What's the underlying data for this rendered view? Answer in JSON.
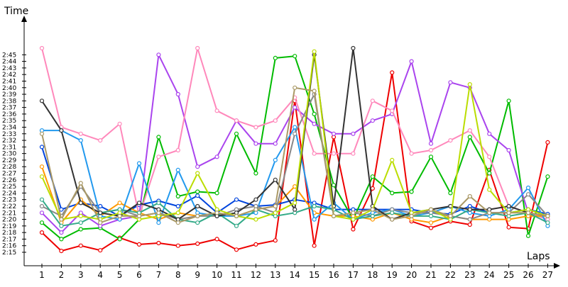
{
  "chart_data": {
    "type": "line",
    "ylabel": "Time",
    "xlabel": "Laps",
    "ylim": [
      134.5,
      166
    ],
    "grid": false,
    "x": [
      1,
      2,
      3,
      4,
      5,
      6,
      7,
      8,
      9,
      10,
      11,
      12,
      13,
      14,
      15,
      16,
      17,
      18,
      19,
      20,
      21,
      22,
      23,
      24,
      25,
      26,
      27
    ],
    "y_ticks": [
      {
        "label": "2:15",
        "value": 135
      },
      {
        "label": "2:16",
        "value": 136
      },
      {
        "label": "2:17",
        "value": 137
      },
      {
        "label": "2:18",
        "value": 138
      },
      {
        "label": "2:19",
        "value": 139
      },
      {
        "label": "2:20",
        "value": 140
      },
      {
        "label": "2:21",
        "value": 141
      },
      {
        "label": "2:22",
        "value": 142
      },
      {
        "label": "2:23",
        "value": 143
      },
      {
        "label": "2:24",
        "value": 144
      },
      {
        "label": "2:25",
        "value": 145
      },
      {
        "label": "2:26",
        "value": 146
      },
      {
        "label": "2:27",
        "value": 147
      },
      {
        "label": "2:28",
        "value": 148
      },
      {
        "label": "2:29",
        "value": 149
      },
      {
        "label": "2:30",
        "value": 150
      },
      {
        "label": "2:31",
        "value": 151
      },
      {
        "label": "2:32",
        "value": 152
      },
      {
        "label": "2:33",
        "value": 153
      },
      {
        "label": "2:34",
        "value": 154
      },
      {
        "label": "2:35",
        "value": 155
      },
      {
        "label": "2:36",
        "value": 156
      },
      {
        "label": "2:37",
        "value": 157
      },
      {
        "label": "2:38",
        "value": 158
      },
      {
        "label": "2:39",
        "value": 159
      },
      {
        "label": "2:40",
        "value": 160
      },
      {
        "label": "2:41",
        "value": 161
      },
      {
        "label": "2:42",
        "value": 162
      },
      {
        "label": "2:43",
        "value": 163
      },
      {
        "label": "2:44",
        "value": 164
      },
      {
        "label": "2:45",
        "value": 165
      }
    ],
    "series": [
      {
        "color": "#ee0000",
        "values": [
          138.0,
          135.2,
          136.0,
          135.3,
          137.2,
          136.2,
          136.4,
          136.0,
          136.3,
          137.0,
          135.4,
          136.2,
          136.8,
          158.0,
          136.0,
          152.5,
          138.5,
          144.7,
          162.3,
          139.7,
          138.7,
          139.7,
          139.2,
          147.5,
          138.8,
          138.6,
          151.7
        ]
      },
      {
        "color": "#0044dd",
        "values": [
          151.0,
          141.5,
          142.5,
          142.0,
          140.5,
          142.2,
          142.8,
          142.0,
          143.6,
          141.0,
          143.0,
          142.0,
          142.2,
          143.0,
          142.5,
          141.5,
          141.5,
          141.5,
          141.5,
          141.5,
          141.0,
          140.8,
          142.0,
          141.0,
          141.0,
          141.5,
          140.8
        ]
      },
      {
        "color": "#00bb00",
        "values": [
          139.5,
          137.0,
          138.5,
          138.7,
          137.0,
          140.0,
          152.5,
          143.5,
          144.2,
          144.0,
          153.0,
          147.0,
          164.5,
          164.8,
          156.0,
          145.2,
          140.0,
          146.5,
          144.0,
          144.2,
          149.5,
          144.0,
          152.5,
          147.0,
          158.0,
          137.5,
          146.5
        ]
      },
      {
        "color": "#aa44ee",
        "values": [
          141.0,
          138.0,
          141.0,
          139.0,
          140.0,
          140.5,
          165.0,
          159.0,
          148.0,
          149.5,
          155.0,
          151.5,
          151.5,
          157.0,
          154.5,
          153.0,
          153.0,
          155.0,
          156.0,
          164.0,
          151.5,
          160.8,
          160.0,
          153.0,
          150.5,
          141.0,
          140.0
        ]
      },
      {
        "color": "#ff88bb",
        "values": [
          166.0,
          154.0,
          153.0,
          152.0,
          154.5,
          140.5,
          149.5,
          150.5,
          166.0,
          156.5,
          155.0,
          154.0,
          155.0,
          158.5,
          150.0,
          150.0,
          150.0,
          158.0,
          156.5,
          150.0,
          150.5,
          152.0,
          153.5,
          149.5,
          142.0,
          141.0,
          140.0
        ]
      },
      {
        "color": "#ff9900",
        "values": [
          148.0,
          139.5,
          143.0,
          140.5,
          142.5,
          141.0,
          140.0,
          141.0,
          140.5,
          141.0,
          140.5,
          141.5,
          142.0,
          145.0,
          141.0,
          140.5,
          140.5,
          140.0,
          141.0,
          140.0,
          139.5,
          140.5,
          140.0,
          140.0,
          140.0,
          140.5,
          140.5
        ]
      },
      {
        "color": "#2299ee",
        "values": [
          153.5,
          153.5,
          152.0,
          140.5,
          140.0,
          148.5,
          139.5,
          147.5,
          141.0,
          140.5,
          140.5,
          141.0,
          149.0,
          154.0,
          140.0,
          142.5,
          140.0,
          141.0,
          141.5,
          140.5,
          141.0,
          142.0,
          141.0,
          140.5,
          141.5,
          144.8,
          139.0
        ]
      },
      {
        "color": "#888888",
        "values": [
          142.0,
          140.5,
          145.0,
          141.0,
          141.5,
          140.5,
          141.0,
          140.0,
          140.5,
          140.5,
          141.5,
          142.0,
          141.0,
          153.0,
          159.0,
          140.5,
          141.0,
          140.5,
          141.5,
          141.0,
          141.0,
          140.5,
          140.0,
          141.0,
          141.0,
          143.8,
          140.5
        ]
      },
      {
        "color": "#33aa88",
        "values": [
          143.0,
          139.0,
          139.5,
          141.0,
          141.5,
          141.0,
          142.5,
          140.0,
          139.5,
          141.0,
          139.0,
          141.5,
          140.5,
          141.0,
          142.0,
          141.5,
          140.0,
          140.5,
          141.0,
          140.5,
          140.5,
          140.0,
          141.5,
          141.0,
          140.5,
          141.0,
          139.5
        ]
      },
      {
        "color": "#333333",
        "values": [
          158.0,
          153.5,
          142.5,
          141.0,
          140.5,
          142.5,
          141.5,
          140.0,
          142.0,
          140.5,
          141.0,
          143.0,
          146.0,
          141.5,
          165.0,
          142.0,
          166.0,
          142.0,
          140.0,
          141.0,
          141.5,
          142.0,
          141.5,
          141.5,
          142.0,
          141.0,
          140.5
        ]
      },
      {
        "color": "#bbdd00",
        "values": [
          146.5,
          140.0,
          140.5,
          140.0,
          141.0,
          140.0,
          140.5,
          141.0,
          147.0,
          141.5,
          140.5,
          140.0,
          141.0,
          142.5,
          165.5,
          140.5,
          140.0,
          141.5,
          149.0,
          141.0,
          141.5,
          140.0,
          160.5,
          144.5,
          141.0,
          141.5,
          140.5
        ]
      },
      {
        "color": "#aa9966",
        "values": [
          153.0,
          140.0,
          145.5,
          139.5,
          140.5,
          140.5,
          141.0,
          139.5,
          140.5,
          141.0,
          140.5,
          141.5,
          142.0,
          160.0,
          159.5,
          140.5,
          141.0,
          141.5,
          140.0,
          140.5,
          141.5,
          140.5,
          143.5,
          141.0,
          141.0,
          141.0,
          140.5
        ]
      }
    ]
  }
}
